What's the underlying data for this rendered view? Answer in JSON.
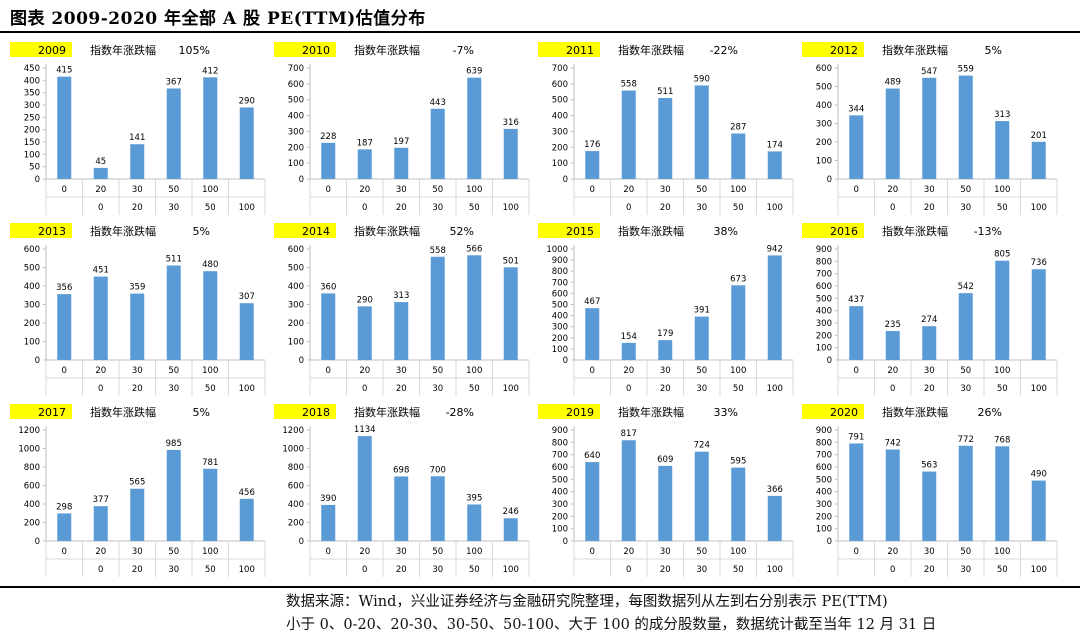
{
  "figure": {
    "title": "图表 2009-2020 年全部 A 股 PE(TTM)估值分布",
    "source_line1": "数据来源：Wind，兴业证券经济与金融研究院整理，每图数据列从左到右分别表示 PE(TTM)",
    "source_line2": "小于 0、0-20、20-30、30-50、50-100、大于 100 的成分股数量，数据统计截至当年 12 月 31 日"
  },
  "colors": {
    "bar": "#5b9bd5",
    "year_highlight": "#ffff00",
    "axis": "#bfbfbf",
    "grid": "#d9d9d9",
    "text": "#000000"
  },
  "chart_data": [
    {
      "type": "bar",
      "year": "2009",
      "ret_label": "指数年涨跌幅",
      "ret": "105%",
      "categories_top": [
        "0",
        "20",
        "30",
        "50",
        "100",
        ""
      ],
      "categories_bottom": [
        "",
        "0",
        "20",
        "30",
        "50",
        "100"
      ],
      "values": [
        415,
        45,
        141,
        367,
        412,
        290
      ],
      "ylim": [
        0,
        450
      ],
      "yticks": [
        0,
        50,
        100,
        150,
        200,
        250,
        300,
        350,
        400,
        450
      ]
    },
    {
      "type": "bar",
      "year": "2010",
      "ret_label": "指数年涨跌幅",
      "ret": "-7%",
      "categories_top": [
        "0",
        "20",
        "30",
        "50",
        "100",
        ""
      ],
      "categories_bottom": [
        "",
        "0",
        "20",
        "30",
        "50",
        "100"
      ],
      "values": [
        228,
        187,
        197,
        443,
        639,
        316
      ],
      "ylim": [
        0,
        700
      ],
      "yticks": [
        0,
        100,
        200,
        300,
        400,
        500,
        600,
        700
      ]
    },
    {
      "type": "bar",
      "year": "2011",
      "ret_label": "指数年涨跌幅",
      "ret": "-22%",
      "categories_top": [
        "0",
        "20",
        "30",
        "50",
        "100",
        ""
      ],
      "categories_bottom": [
        "",
        "0",
        "20",
        "30",
        "50",
        "100"
      ],
      "values": [
        176,
        558,
        511,
        590,
        287,
        174
      ],
      "ylim": [
        0,
        700
      ],
      "yticks": [
        0,
        100,
        200,
        300,
        400,
        500,
        600,
        700
      ]
    },
    {
      "type": "bar",
      "year": "2012",
      "ret_label": "指数年涨跌幅",
      "ret": "5%",
      "categories_top": [
        "0",
        "20",
        "30",
        "50",
        "100",
        ""
      ],
      "categories_bottom": [
        "",
        "0",
        "20",
        "30",
        "50",
        "100"
      ],
      "values": [
        344,
        489,
        547,
        559,
        313,
        201
      ],
      "ylim": [
        0,
        600
      ],
      "yticks": [
        0,
        100,
        200,
        300,
        400,
        500,
        600
      ]
    },
    {
      "type": "bar",
      "year": "2013",
      "ret_label": "指数年涨跌幅",
      "ret": "5%",
      "categories_top": [
        "0",
        "20",
        "30",
        "50",
        "100",
        ""
      ],
      "categories_bottom": [
        "",
        "0",
        "20",
        "30",
        "50",
        "100"
      ],
      "values": [
        356,
        451,
        359,
        511,
        480,
        307
      ],
      "ylim": [
        0,
        600
      ],
      "yticks": [
        0,
        100,
        200,
        300,
        400,
        500,
        600
      ]
    },
    {
      "type": "bar",
      "year": "2014",
      "ret_label": "指数年涨跌幅",
      "ret": "52%",
      "categories_top": [
        "0",
        "20",
        "30",
        "50",
        "100",
        ""
      ],
      "categories_bottom": [
        "",
        "0",
        "20",
        "30",
        "50",
        "100"
      ],
      "values": [
        360,
        290,
        313,
        558,
        566,
        501
      ],
      "ylim": [
        0,
        600
      ],
      "yticks": [
        0,
        100,
        200,
        300,
        400,
        500,
        600
      ]
    },
    {
      "type": "bar",
      "year": "2015",
      "ret_label": "指数年涨跌幅",
      "ret": "38%",
      "categories_top": [
        "0",
        "20",
        "30",
        "50",
        "100",
        ""
      ],
      "categories_bottom": [
        "",
        "0",
        "20",
        "30",
        "50",
        "100"
      ],
      "values": [
        467,
        154,
        179,
        391,
        673,
        942
      ],
      "ylim": [
        0,
        1000
      ],
      "yticks": [
        0,
        100,
        200,
        300,
        400,
        500,
        600,
        700,
        800,
        900,
        1000
      ]
    },
    {
      "type": "bar",
      "year": "2016",
      "ret_label": "指数年涨跌幅",
      "ret": "-13%",
      "categories_top": [
        "0",
        "20",
        "30",
        "50",
        "100",
        ""
      ],
      "categories_bottom": [
        "",
        "0",
        "20",
        "30",
        "50",
        "100"
      ],
      "values": [
        437,
        235,
        274,
        542,
        805,
        736
      ],
      "ylim": [
        0,
        900
      ],
      "yticks": [
        0,
        100,
        200,
        300,
        400,
        500,
        600,
        700,
        800,
        900
      ]
    },
    {
      "type": "bar",
      "year": "2017",
      "ret_label": "指数年涨跌幅",
      "ret": "5%",
      "categories_top": [
        "0",
        "20",
        "30",
        "50",
        "100",
        ""
      ],
      "categories_bottom": [
        "",
        "0",
        "20",
        "30",
        "50",
        "100"
      ],
      "values": [
        298,
        377,
        565,
        985,
        781,
        456
      ],
      "ylim": [
        0,
        1200
      ],
      "yticks": [
        0,
        200,
        400,
        600,
        800,
        1000,
        1200
      ]
    },
    {
      "type": "bar",
      "year": "2018",
      "ret_label": "指数年涨跌幅",
      "ret": "-28%",
      "categories_top": [
        "0",
        "20",
        "30",
        "50",
        "100",
        ""
      ],
      "categories_bottom": [
        "",
        "0",
        "20",
        "30",
        "50",
        "100"
      ],
      "values": [
        390,
        1134,
        698,
        700,
        395,
        246
      ],
      "ylim": [
        0,
        1200
      ],
      "yticks": [
        0,
        200,
        400,
        600,
        800,
        1000,
        1200
      ]
    },
    {
      "type": "bar",
      "year": "2019",
      "ret_label": "指数年涨跌幅",
      "ret": "33%",
      "categories_top": [
        "0",
        "20",
        "30",
        "50",
        "100",
        ""
      ],
      "categories_bottom": [
        "",
        "0",
        "20",
        "30",
        "50",
        "100"
      ],
      "values": [
        640,
        817,
        609,
        724,
        595,
        366
      ],
      "ylim": [
        0,
        900
      ],
      "yticks": [
        0,
        100,
        200,
        300,
        400,
        500,
        600,
        700,
        800,
        900
      ]
    },
    {
      "type": "bar",
      "year": "2020",
      "ret_label": "指数年涨跌幅",
      "ret": "26%",
      "categories_top": [
        "0",
        "20",
        "30",
        "50",
        "100",
        ""
      ],
      "categories_bottom": [
        "",
        "0",
        "20",
        "30",
        "50",
        "100"
      ],
      "values": [
        791,
        742,
        563,
        772,
        768,
        490
      ],
      "ylim": [
        0,
        900
      ],
      "yticks": [
        0,
        100,
        200,
        300,
        400,
        500,
        600,
        700,
        800,
        900
      ]
    }
  ]
}
